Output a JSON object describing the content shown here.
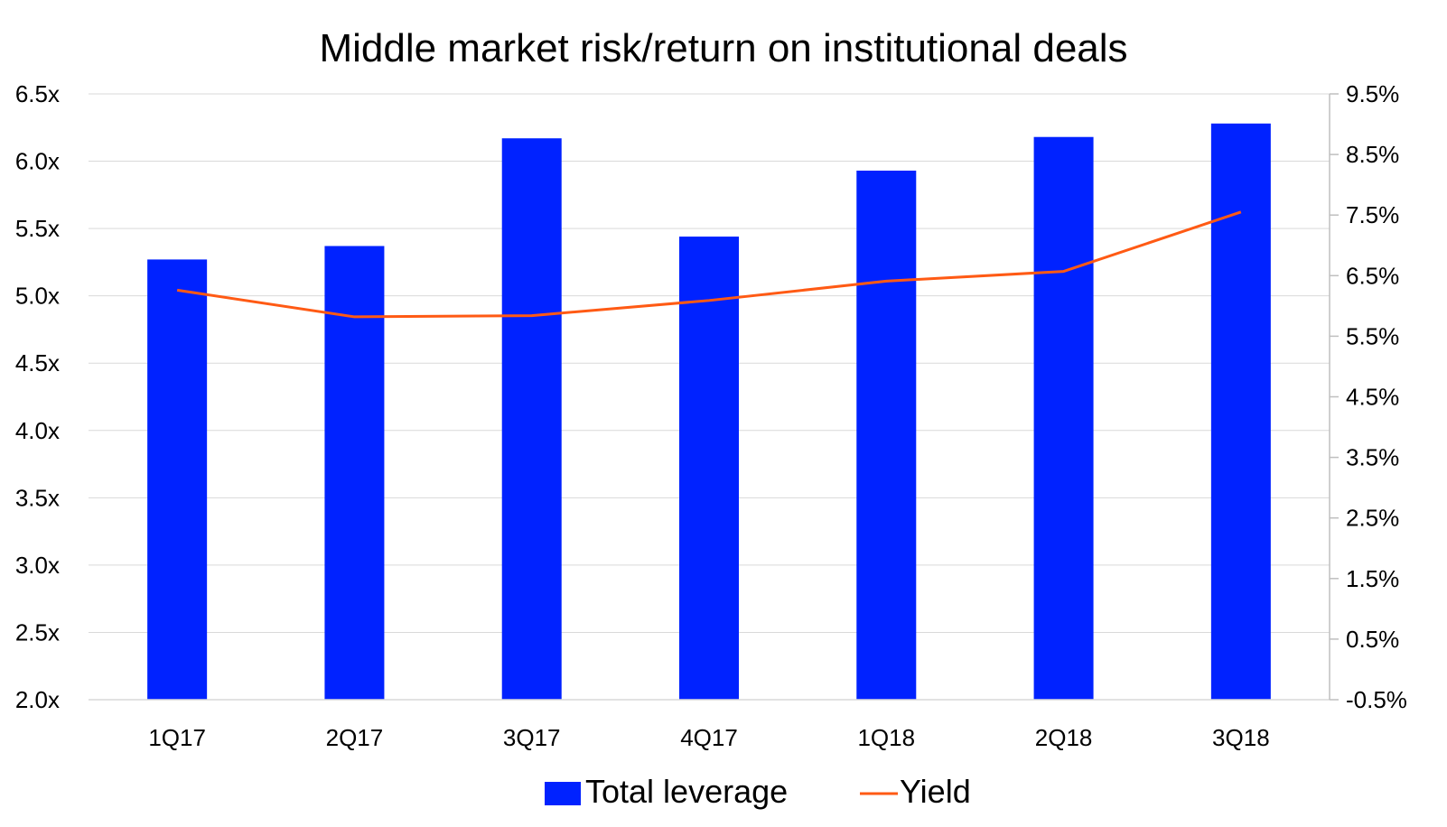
{
  "chart_data": {
    "type": "bar",
    "title": "Middle market risk/return on institutional deals",
    "categories": [
      "1Q17",
      "2Q17",
      "3Q17",
      "4Q17",
      "1Q18",
      "2Q18",
      "3Q18"
    ],
    "series": [
      {
        "name": "Total leverage",
        "type": "bar",
        "axis": "left",
        "color": "#0022ff",
        "values": [
          5.27,
          5.37,
          6.17,
          5.44,
          5.93,
          6.18,
          6.28
        ]
      },
      {
        "name": "Yield",
        "type": "line",
        "axis": "right",
        "color": "#ff5a14",
        "values": [
          6.26,
          5.82,
          5.84,
          6.09,
          6.41,
          6.57,
          7.55
        ]
      }
    ],
    "y_left": {
      "min": 2.0,
      "max": 6.5,
      "step": 0.5,
      "tick_labels": [
        "2.0x",
        "2.5x",
        "3.0x",
        "3.5x",
        "4.0x",
        "4.5x",
        "5.0x",
        "5.5x",
        "6.0x",
        "6.5x"
      ]
    },
    "y_right": {
      "min": -0.5,
      "max": 9.5,
      "step": 1.0,
      "tick_labels": [
        "-0.5%",
        "0.5%",
        "1.5%",
        "2.5%",
        "3.5%",
        "4.5%",
        "5.5%",
        "6.5%",
        "7.5%",
        "8.5%",
        "9.5%"
      ]
    },
    "grid": true,
    "legend": "bottom-center",
    "gridline_color": "#d9d9d9",
    "axis_color": "#bfbfbf"
  }
}
